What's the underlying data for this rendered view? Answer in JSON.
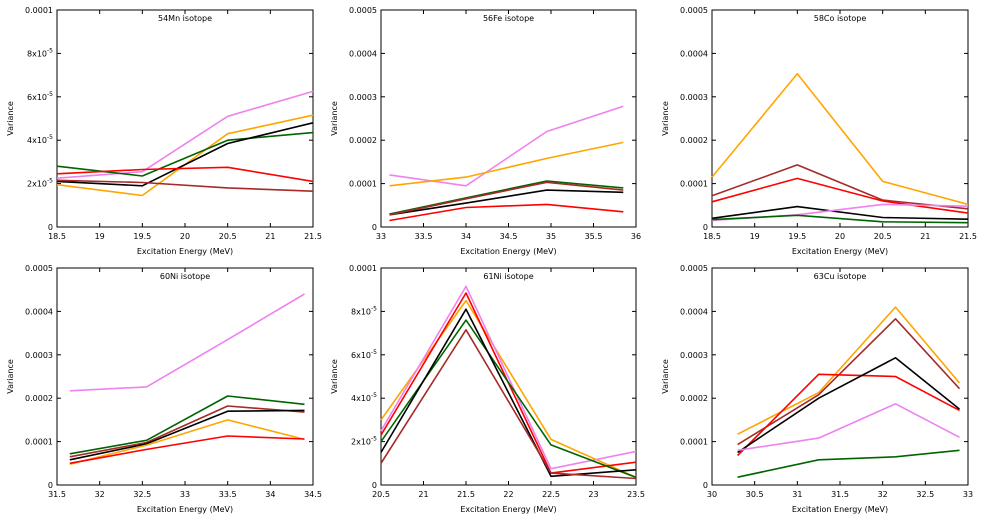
{
  "figure": {
    "background": "#ffffff",
    "axis_color": "#000000"
  },
  "chart_data": [
    {
      "type": "line",
      "title": "54Mn isotope",
      "xlabel": "Excitation Energy (MeV)",
      "ylabel": "Variance",
      "xlim": [
        18.5,
        21.5
      ],
      "ylim": [
        0,
        0.0001
      ],
      "xticks": [
        18.5,
        19,
        19.5,
        20,
        20.5,
        21,
        21.5
      ],
      "xtick_labels": [
        "18.5",
        "19",
        "19.5",
        "20",
        "20.5",
        "21",
        "21.5"
      ],
      "yticks": [
        0,
        2e-05,
        4e-05,
        6e-05,
        8e-05,
        0.0001
      ],
      "ytick_labels": [
        {
          "base": "0",
          "exp": ""
        },
        {
          "base": "2x10",
          "exp": "-5"
        },
        {
          "base": "4x10",
          "exp": "-5"
        },
        {
          "base": "6x10",
          "exp": "-5"
        },
        {
          "base": "8x10",
          "exp": "-5"
        },
        {
          "base": "0.0001",
          "exp": ""
        }
      ],
      "x": [
        18.5,
        19.5,
        20.5,
        21.5
      ],
      "series": [
        {
          "color": "#ee82ee",
          "values": [
            2.25e-05,
            2.55e-05,
            5.1e-05,
            6.25e-05
          ]
        },
        {
          "color": "#ffa500",
          "values": [
            1.95e-05,
            1.45e-05,
            4.3e-05,
            5.15e-05
          ]
        },
        {
          "color": "#006400",
          "values": [
            2.8e-05,
            2.35e-05,
            4e-05,
            4.35e-05
          ]
        },
        {
          "color": "#000000",
          "values": [
            2.1e-05,
            1.9e-05,
            3.85e-05,
            4.8e-05
          ]
        },
        {
          "color": "#ff0000",
          "values": [
            2.45e-05,
            2.65e-05,
            2.75e-05,
            2.1e-05
          ]
        },
        {
          "color": "#a52a2a",
          "values": [
            2.15e-05,
            2.05e-05,
            1.8e-05,
            1.65e-05
          ]
        }
      ]
    },
    {
      "type": "line",
      "title": "56Fe isotope",
      "xlabel": "Excitation Energy (MeV)",
      "ylabel": "Variance",
      "xlim": [
        33,
        36
      ],
      "ylim": [
        0,
        0.0005
      ],
      "xticks": [
        33,
        33.5,
        34,
        34.5,
        35,
        35.5,
        36
      ],
      "xtick_labels": [
        "33",
        "33.5",
        "34",
        "34.5",
        "35",
        "35.5",
        "36"
      ],
      "yticks": [
        0,
        0.0001,
        0.0002,
        0.0003,
        0.0004,
        0.0005
      ],
      "ytick_labels": [
        {
          "base": "0",
          "exp": ""
        },
        {
          "base": "0.0001",
          "exp": ""
        },
        {
          "base": "0.0002",
          "exp": ""
        },
        {
          "base": "0.0003",
          "exp": ""
        },
        {
          "base": "0.0004",
          "exp": ""
        },
        {
          "base": "0.0005",
          "exp": ""
        }
      ],
      "x": [
        33.1,
        34,
        34.95,
        35.85
      ],
      "series": [
        {
          "color": "#ee82ee",
          "values": [
            0.00012,
            9.5e-05,
            0.00022,
            0.000278
          ]
        },
        {
          "color": "#ffa500",
          "values": [
            9.5e-05,
            0.000115,
            0.000158,
            0.000195
          ]
        },
        {
          "color": "#006400",
          "values": [
            3e-05,
            6.7e-05,
            0.000106,
            9e-05
          ]
        },
        {
          "color": "#000000",
          "values": [
            2.8e-05,
            5.5e-05,
            8.5e-05,
            8e-05
          ]
        },
        {
          "color": "#a52a2a",
          "values": [
            2.8e-05,
            6.5e-05,
            0.000103,
            8.5e-05
          ]
        },
        {
          "color": "#ff0000",
          "values": [
            1.5e-05,
            4.5e-05,
            5.2e-05,
            3.5e-05
          ]
        }
      ]
    },
    {
      "type": "line",
      "title": "58Co isotope",
      "xlabel": "Excitation Energy (MeV)",
      "ylabel": "Variance",
      "xlim": [
        18.5,
        21.5
      ],
      "ylim": [
        0,
        0.0005
      ],
      "xticks": [
        18.5,
        19,
        19.5,
        20,
        20.5,
        21,
        21.5
      ],
      "xtick_labels": [
        "18.5",
        "19",
        "19.5",
        "20",
        "20.5",
        "21",
        "21.5"
      ],
      "yticks": [
        0,
        0.0001,
        0.0002,
        0.0003,
        0.0004,
        0.0005
      ],
      "ytick_labels": [
        {
          "base": "0",
          "exp": ""
        },
        {
          "base": "0.0001",
          "exp": ""
        },
        {
          "base": "0.0002",
          "exp": ""
        },
        {
          "base": "0.0003",
          "exp": ""
        },
        {
          "base": "0.0004",
          "exp": ""
        },
        {
          "base": "0.0005",
          "exp": ""
        }
      ],
      "x": [
        18.5,
        19.5,
        20.5,
        21.5
      ],
      "series": [
        {
          "color": "#ffa500",
          "values": [
            0.000115,
            0.000353,
            0.000105,
            5.2e-05
          ]
        },
        {
          "color": "#a52a2a",
          "values": [
            7.2e-05,
            0.000143,
            6.2e-05,
            4.2e-05
          ]
        },
        {
          "color": "#ff0000",
          "values": [
            5.8e-05,
            0.000112,
            6e-05,
            3.2e-05
          ]
        },
        {
          "color": "#000000",
          "values": [
            2e-05,
            4.7e-05,
            2.2e-05,
            1.8e-05
          ]
        },
        {
          "color": "#ee82ee",
          "values": [
            1.5e-05,
            2.8e-05,
            5.2e-05,
            4.8e-05
          ]
        },
        {
          "color": "#006400",
          "values": [
            1.7e-05,
            2.7e-05,
            1.2e-05,
            1e-05
          ]
        }
      ]
    },
    {
      "type": "line",
      "title": "60Ni isotope",
      "xlabel": "Excitation Energy (MeV)",
      "ylabel": "Variance",
      "xlim": [
        31.5,
        34.5
      ],
      "ylim": [
        0,
        0.0005
      ],
      "xticks": [
        31.5,
        32,
        32.5,
        33,
        33.5,
        34,
        34.5
      ],
      "xtick_labels": [
        "31.5",
        "32",
        "32.5",
        "33",
        "33.5",
        "34",
        "34.5"
      ],
      "yticks": [
        0,
        0.0001,
        0.0002,
        0.0003,
        0.0004,
        0.0005
      ],
      "ytick_labels": [
        {
          "base": "0",
          "exp": ""
        },
        {
          "base": "0.0001",
          "exp": ""
        },
        {
          "base": "0.0002",
          "exp": ""
        },
        {
          "base": "0.0003",
          "exp": ""
        },
        {
          "base": "0.0004",
          "exp": ""
        },
        {
          "base": "0.0005",
          "exp": ""
        }
      ],
      "x": [
        31.65,
        32.55,
        33.5,
        34.4
      ],
      "series": [
        {
          "color": "#ee82ee",
          "values": [
            0.000217,
            0.000226,
            0.000335,
            0.00044
          ]
        },
        {
          "color": "#006400",
          "values": [
            7.2e-05,
            0.000103,
            0.000205,
            0.000186
          ]
        },
        {
          "color": "#a52a2a",
          "values": [
            6.5e-05,
            9.8e-05,
            0.000182,
            0.000168
          ]
        },
        {
          "color": "#000000",
          "values": [
            5.8e-05,
            9.5e-05,
            0.00017,
            0.000172
          ]
        },
        {
          "color": "#ffa500",
          "values": [
            4.8e-05,
            9.2e-05,
            0.00015,
            0.000105
          ]
        },
        {
          "color": "#ff0000",
          "values": [
            5e-05,
            8.2e-05,
            0.000113,
            0.000106
          ]
        }
      ]
    },
    {
      "type": "line",
      "title": "61Ni isotope",
      "xlabel": "Excitation Energy (MeV)",
      "ylabel": "Variance",
      "xlim": [
        20.5,
        23.5
      ],
      "ylim": [
        0,
        0.0001
      ],
      "xticks": [
        20.5,
        21,
        21.5,
        22,
        22.5,
        23,
        23.5
      ],
      "xtick_labels": [
        "20.5",
        "21",
        "21.5",
        "22",
        "22.5",
        "23",
        "23.5"
      ],
      "yticks": [
        0,
        2e-05,
        4e-05,
        6e-05,
        8e-05,
        0.0001
      ],
      "ytick_labels": [
        {
          "base": "0",
          "exp": ""
        },
        {
          "base": "2x10",
          "exp": "-5"
        },
        {
          "base": "4x10",
          "exp": "-5"
        },
        {
          "base": "6x10",
          "exp": "-5"
        },
        {
          "base": "8x10",
          "exp": "-5"
        },
        {
          "base": "0.0001",
          "exp": ""
        }
      ],
      "x": [
        20.5,
        21.5,
        22.5,
        23.5
      ],
      "series": [
        {
          "color": "#ffa500",
          "values": [
            3e-05,
            8.5e-05,
            2.1e-05,
            3.5e-06
          ]
        },
        {
          "color": "#ee82ee",
          "values": [
            2.5e-05,
            9.15e-05,
            7.5e-06,
            1.55e-05
          ]
        },
        {
          "color": "#ff0000",
          "values": [
            2.3e-05,
            8.85e-05,
            5.5e-06,
            1.05e-05
          ]
        },
        {
          "color": "#006400",
          "values": [
            2e-05,
            7.6e-05,
            1.85e-05,
            3.5e-06
          ]
        },
        {
          "color": "#000000",
          "values": [
            1.5e-05,
            8.1e-05,
            4e-06,
            7e-06
          ]
        },
        {
          "color": "#a52a2a",
          "values": [
            1e-05,
            7.15e-05,
            5.5e-06,
            3e-06
          ]
        }
      ]
    },
    {
      "type": "line",
      "title": "63Cu isotope",
      "xlabel": "Excitation Energy (MeV)",
      "ylabel": "Variance",
      "xlim": [
        30,
        33
      ],
      "ylim": [
        0,
        0.0005
      ],
      "xticks": [
        30,
        30.5,
        31,
        31.5,
        32,
        32.5,
        33
      ],
      "xtick_labels": [
        "30",
        "30.5",
        "31",
        "31.5",
        "32",
        "32.5",
        "33"
      ],
      "yticks": [
        0,
        0.0001,
        0.0002,
        0.0003,
        0.0004,
        0.0005
      ],
      "ytick_labels": [
        {
          "base": "0",
          "exp": ""
        },
        {
          "base": "0.0001",
          "exp": ""
        },
        {
          "base": "0.0002",
          "exp": ""
        },
        {
          "base": "0.0003",
          "exp": ""
        },
        {
          "base": "0.0004",
          "exp": ""
        },
        {
          "base": "0.0005",
          "exp": ""
        }
      ],
      "x": [
        30.3,
        31.25,
        32.15,
        32.9
      ],
      "series": [
        {
          "color": "#ffa500",
          "values": [
            0.000117,
            0.000213,
            0.00041,
            0.000235
          ]
        },
        {
          "color": "#a52a2a",
          "values": [
            9.3e-05,
            0.000208,
            0.000383,
            0.000222
          ]
        },
        {
          "color": "#ff0000",
          "values": [
            6.8e-05,
            0.000255,
            0.00025,
            0.000172
          ]
        },
        {
          "color": "#000000",
          "values": [
            7.5e-05,
            0.0002,
            0.000293,
            0.000175
          ]
        },
        {
          "color": "#ee82ee",
          "values": [
            8e-05,
            0.000108,
            0.000187,
            0.00011
          ]
        },
        {
          "color": "#006400",
          "values": [
            1.8e-05,
            5.8e-05,
            6.5e-05,
            8e-05
          ]
        }
      ]
    }
  ]
}
